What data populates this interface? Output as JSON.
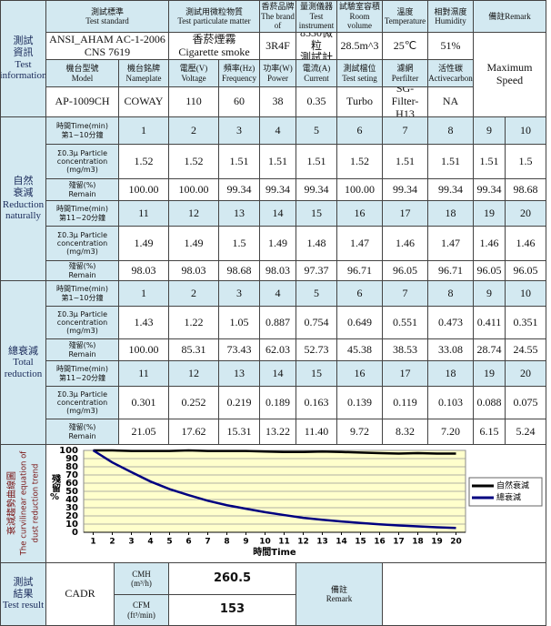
{
  "info": {
    "label": [
      "測試",
      "資訊",
      "Test",
      "information"
    ],
    "headers1": [
      [
        "測試標準",
        "Test standard"
      ],
      [
        "測試用微粒物質",
        "Test particulate matter"
      ],
      [
        "香菸品牌",
        "The brand of"
      ],
      [
        "量測儀器",
        "Test instrument"
      ],
      [
        "試驗室容積",
        "Room volume"
      ],
      [
        "溫度",
        "Temperature"
      ],
      [
        "相對濕度",
        "Humidity"
      ],
      [
        "備註Remark"
      ]
    ],
    "values1": [
      [
        "ANSI_AHAM AC-1-2006",
        "CNS 7619"
      ],
      [
        "香菸煙霧",
        "Cigarette smoke"
      ],
      "3R4F",
      [
        "8530微粒",
        "測試計"
      ],
      "28.5m^3",
      "25℃",
      "51%"
    ],
    "headers2": [
      [
        "機台型號",
        "Model"
      ],
      [
        "機台銘牌",
        "Nameplate"
      ],
      [
        "電壓(V)",
        "Voltage"
      ],
      [
        "頻率(Hz)",
        "Frequency"
      ],
      [
        "功率(W)",
        "Power"
      ],
      [
        "電流(A)",
        "Current"
      ],
      [
        "測試檔位",
        "Test seting"
      ],
      [
        "濾網",
        "Perfilter"
      ],
      [
        "活性碳",
        "Activecarbon"
      ]
    ],
    "values2": [
      "AP-1009CH",
      "COWAY",
      "110",
      "60",
      "38",
      "0.35",
      "Turbo",
      [
        "SG-",
        "Filter-H13"
      ],
      "NA"
    ],
    "remark": [
      "Maximum",
      "Speed"
    ]
  },
  "sections": [
    {
      "label": [
        "自然",
        "衰減",
        "Reduction",
        "naturally"
      ],
      "blocks": [
        {
          "time_label": [
            "時間Time(min)",
            "第1~10分鐘"
          ],
          "times": [
            "1",
            "2",
            "3",
            "4",
            "5",
            "6",
            "7",
            "8",
            "9",
            "10"
          ],
          "conc_label": [
            "Σ0.3μ Particle",
            "concentration",
            "(mg/m3)"
          ],
          "conc": [
            "1.52",
            "1.52",
            "1.51",
            "1.51",
            "1.51",
            "1.52",
            "1.51",
            "1.51",
            "1.51",
            "1.5"
          ],
          "remain_label": [
            "殘留(%)",
            "Remain"
          ],
          "remain": [
            "100.00",
            "100.00",
            "99.34",
            "99.34",
            "99.34",
            "100.00",
            "99.34",
            "99.34",
            "99.34",
            "98.68"
          ]
        },
        {
          "time_label": [
            "時間Time(min)",
            "第11~20分鐘"
          ],
          "times": [
            "11",
            "12",
            "13",
            "14",
            "15",
            "16",
            "17",
            "18",
            "19",
            "20"
          ],
          "conc_label": [
            "Σ0.3μ Particle",
            "concentration",
            "(mg/m3)"
          ],
          "conc": [
            "1.49",
            "1.49",
            "1.5",
            "1.49",
            "1.48",
            "1.47",
            "1.46",
            "1.47",
            "1.46",
            "1.46"
          ],
          "remain_label": [
            "殘留(%)",
            "Remain"
          ],
          "remain": [
            "98.03",
            "98.03",
            "98.68",
            "98.03",
            "97.37",
            "96.71",
            "96.05",
            "96.71",
            "96.05",
            "96.05"
          ]
        }
      ]
    },
    {
      "label": [
        "總衰減",
        "Total",
        "reduction"
      ],
      "blocks": [
        {
          "time_label": [
            "時間Time(min)",
            "第1~10分鐘"
          ],
          "times": [
            "1",
            "2",
            "3",
            "4",
            "5",
            "6",
            "7",
            "8",
            "9",
            "10"
          ],
          "conc_label": [
            "Σ0.3μ Particle",
            "concentration",
            "(mg/m3)"
          ],
          "conc": [
            "1.43",
            "1.22",
            "1.05",
            "0.887",
            "0.754",
            "0.649",
            "0.551",
            "0.473",
            "0.411",
            "0.351"
          ],
          "remain_label": [
            "殘留(%)",
            "Remain"
          ],
          "remain": [
            "100.00",
            "85.31",
            "73.43",
            "62.03",
            "52.73",
            "45.38",
            "38.53",
            "33.08",
            "28.74",
            "24.55"
          ]
        },
        {
          "time_label": [
            "時間Time(min)",
            "第11~20分鐘"
          ],
          "times": [
            "11",
            "12",
            "13",
            "14",
            "15",
            "16",
            "17",
            "18",
            "19",
            "20"
          ],
          "conc_label": [
            "Σ0.3μ Particle",
            "concentration",
            "(mg/m3)"
          ],
          "conc": [
            "0.301",
            "0.252",
            "0.219",
            "0.189",
            "0.163",
            "0.139",
            "0.119",
            "0.103",
            "0.088",
            "0.075"
          ],
          "remain_label": [
            "殘留(%)",
            "Remain"
          ],
          "remain": [
            "21.05",
            "17.62",
            "15.31",
            "13.22",
            "11.40",
            "9.72",
            "8.32",
            "7.20",
            "6.15",
            "5.24"
          ]
        }
      ]
    }
  ],
  "chart_data": {
    "type": "line",
    "side_title": [
      "衰減趨勢曲線圖",
      "The curvilinear equation of",
      "dust reduction trend"
    ],
    "y_label": "殘留%",
    "x_label": "時間Time",
    "x": [
      1,
      2,
      3,
      4,
      5,
      6,
      7,
      8,
      9,
      10,
      11,
      12,
      13,
      14,
      15,
      16,
      17,
      18,
      19,
      20
    ],
    "xlim": [
      0.5,
      20.5
    ],
    "xticks": [
      1,
      2,
      3,
      4,
      5,
      6,
      7,
      8,
      9,
      10,
      11,
      12,
      13,
      14,
      15,
      16,
      17,
      18,
      19,
      20
    ],
    "ylim": [
      0,
      100
    ],
    "yticks": [
      0,
      10,
      20,
      30,
      40,
      50,
      60,
      70,
      80,
      90,
      100
    ],
    "grid": true,
    "series": [
      {
        "name": "自然衰減",
        "color": "#000000",
        "values": [
          100,
          100,
          99.34,
          99.34,
          99.34,
          100,
          99.34,
          99.34,
          99.34,
          98.68,
          98.03,
          98.03,
          98.68,
          98.03,
          97.37,
          96.71,
          96.05,
          96.71,
          96.05,
          96.05
        ]
      },
      {
        "name": "總衰減",
        "color": "#000080",
        "values": [
          100,
          85.31,
          73.43,
          62.03,
          52.73,
          45.38,
          38.53,
          33.08,
          28.74,
          24.55,
          21.05,
          17.62,
          15.31,
          13.22,
          11.4,
          9.72,
          8.32,
          7.2,
          6.15,
          5.24
        ]
      }
    ]
  },
  "result": {
    "label": [
      "測試",
      "結果",
      "Test result"
    ],
    "cadr": "CADR",
    "cmh": [
      "CMH",
      "(m³/h)"
    ],
    "cmh_value": "260.5",
    "cfm": [
      "CFM",
      "(ft³/min)"
    ],
    "cfm_value": "153",
    "remark": [
      "備註",
      "Remark"
    ]
  }
}
